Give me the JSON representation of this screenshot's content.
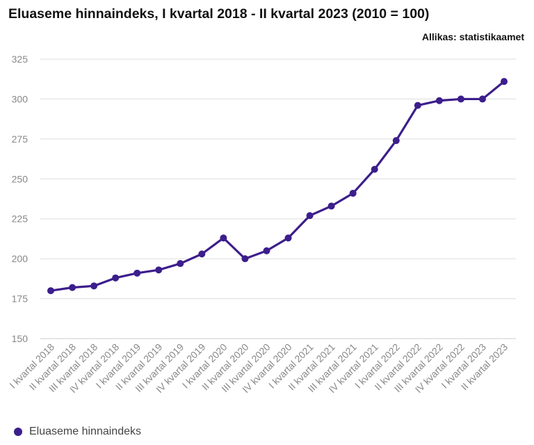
{
  "title": "Eluaseme hinnaindeks, I kvartal 2018 - II kvartal 2023 (2010 = 100)",
  "source": "Allikas: statistikaamet",
  "colors": {
    "series": "#3c1e8c",
    "grid": "#dddddd",
    "axis_text": "#888888"
  },
  "chart_data": {
    "type": "line",
    "title": "Eluaseme hinnaindeks, I kvartal 2018 - II kvartal 2023 (2010 = 100)",
    "xlabel": "",
    "ylabel": "",
    "ylim": [
      150,
      325
    ],
    "yticks": [
      150,
      175,
      200,
      225,
      250,
      275,
      300,
      325
    ],
    "grid": true,
    "legend": "bottom-left",
    "categories": [
      "I kvartal 2018",
      "II kvartal 2018",
      "III kvartal 2018",
      "IV kvartal 2018",
      "I kvartal 2019",
      "II kvartal 2019",
      "III kvartal 2019",
      "IV kvartal 2019",
      "I kvartal 2020",
      "II kvartal 2020",
      "III kvartal 2020",
      "IV kvartal 2020",
      "I kvartal 2021",
      "II kvartal 2021",
      "III kvartal 2021",
      "IV kvartal 2021",
      "I kvartal 2022",
      "II kvartal 2022",
      "III kvartal 2022",
      "IV kvartal 2022",
      "I kvartal 2023",
      "II kvartal 2023"
    ],
    "series": [
      {
        "name": "Eluaseme hinnaindeks",
        "values": [
          180,
          182,
          183,
          188,
          191,
          193,
          197,
          203,
          213,
          200,
          205,
          213,
          227,
          233,
          241,
          256,
          274,
          296,
          299,
          300,
          300,
          311
        ]
      }
    ]
  }
}
